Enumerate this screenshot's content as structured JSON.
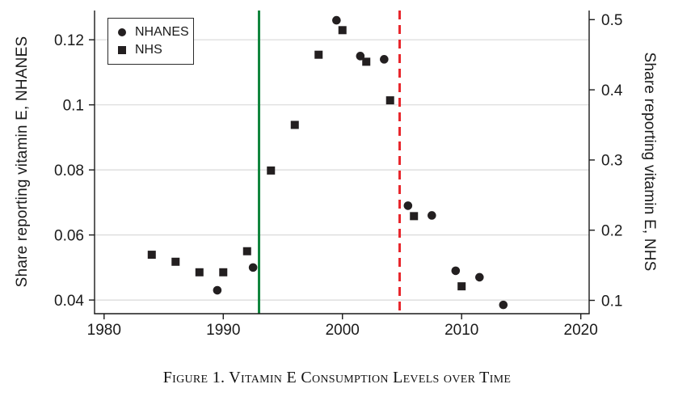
{
  "figure": {
    "caption": "Figure 1. Vitamin E Consumption Levels over Time"
  },
  "chart_data": {
    "type": "scatter",
    "title": "Figure 1. Vitamin E Consumption Levels over Time",
    "grid": true,
    "x_axis": {
      "ticks": [
        1980,
        1990,
        2000,
        2010,
        2020
      ],
      "range": [
        1979.2,
        2020.7
      ]
    },
    "left_axis": {
      "label": "Share reporting vitamin E, NHANES",
      "ticks": [
        0.04,
        0.06,
        0.08,
        0.1,
        0.12
      ],
      "tick_labels": [
        "0.04",
        "0.06",
        "0.08",
        "0.1",
        "0.12"
      ],
      "range": [
        0.0358,
        0.129
      ]
    },
    "right_axis": {
      "label": "Share reporting vitamin E, NHS",
      "ticks": [
        0.1,
        0.2,
        0.3,
        0.4,
        0.5
      ],
      "tick_labels": [
        "0.1",
        "0.2",
        "0.3",
        "0.4",
        "0.5"
      ],
      "range": [
        0.081,
        0.513
      ]
    },
    "legend": {
      "position": "top-left",
      "entries": [
        {
          "label": "NHANES",
          "marker": "circle"
        },
        {
          "label": "NHS",
          "marker": "square"
        }
      ]
    },
    "series": [
      {
        "name": "NHANES",
        "marker": "circle",
        "axis": "left",
        "points": [
          [
            1989.5,
            0.043
          ],
          [
            1992.5,
            0.05
          ],
          [
            1999.5,
            0.126
          ],
          [
            2001.5,
            0.115
          ],
          [
            2003.5,
            0.114
          ],
          [
            2005.5,
            0.069
          ],
          [
            2007.5,
            0.066
          ],
          [
            2009.5,
            0.049
          ],
          [
            2011.5,
            0.047
          ],
          [
            2013.5,
            0.0385
          ]
        ]
      },
      {
        "name": "NHS",
        "marker": "square",
        "axis": "right",
        "points": [
          [
            1984,
            0.165
          ],
          [
            1986,
            0.155
          ],
          [
            1988,
            0.14
          ],
          [
            1990,
            0.14
          ],
          [
            1992,
            0.17
          ],
          [
            1994,
            0.285
          ],
          [
            1996,
            0.35
          ],
          [
            1998,
            0.45
          ],
          [
            2000,
            0.485
          ],
          [
            2002,
            0.44
          ],
          [
            2004,
            0.385
          ],
          [
            2006,
            0.22
          ],
          [
            2010,
            0.12
          ]
        ]
      }
    ],
    "vlines": [
      {
        "x": 1993,
        "style": "solid",
        "color": "#10853d"
      },
      {
        "x": 2004.8,
        "style": "dashed",
        "color": "#e8262c"
      }
    ],
    "colors": {
      "marker": "#231f20",
      "grid": "#d9d9d9",
      "axis": "#1a1a1a",
      "text": "#1a1a1a",
      "background": "#ffffff"
    }
  }
}
